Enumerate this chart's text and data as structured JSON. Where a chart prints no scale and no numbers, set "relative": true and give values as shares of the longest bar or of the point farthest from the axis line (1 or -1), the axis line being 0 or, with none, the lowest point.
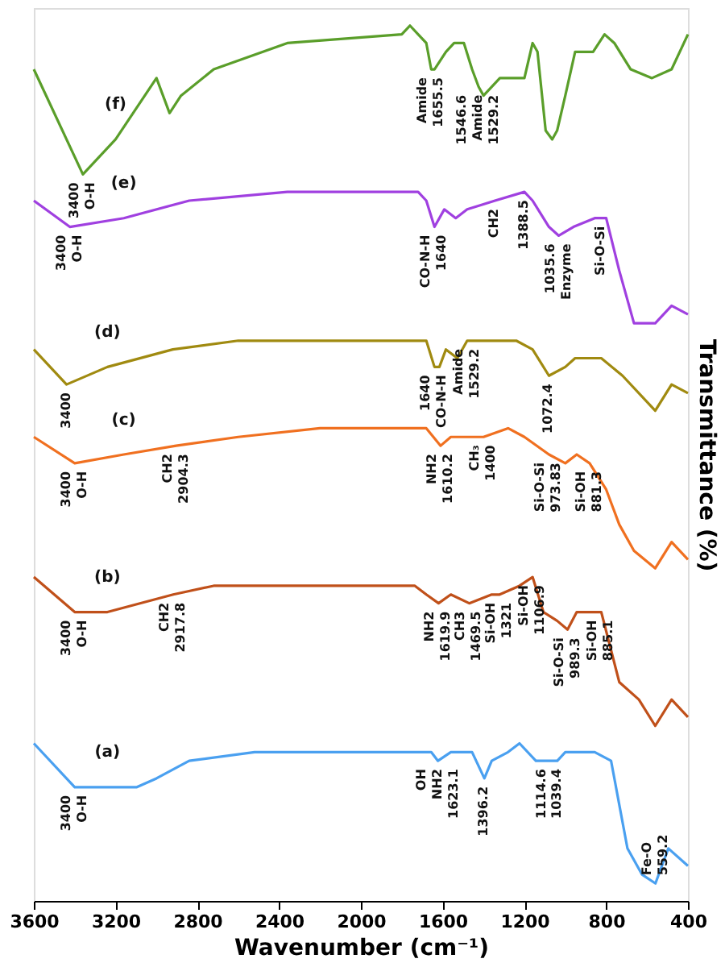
{
  "chart_data": {
    "type": "line",
    "relative": true,
    "xlabel": "Wavenumber (cm⁻¹)",
    "ylabel": "Transmittance (%)",
    "xlim": [
      3600,
      400
    ],
    "xticks": [
      3600,
      3200,
      2800,
      2400,
      2000,
      1600,
      1200,
      800,
      400
    ],
    "grid": false,
    "legend": false,
    "series": [
      {
        "name": "(f)",
        "color": "#5a9e2a",
        "x": [
          3600,
          3360,
          3200,
          3000,
          2936,
          2880,
          2720,
          2360,
          1800,
          1760,
          1720,
          1680,
          1656,
          1640,
          1584,
          1544,
          1496,
          1456,
          1424,
          1400,
          1320,
          1256,
          1200,
          1160,
          1136,
          1096,
          1064,
          1040,
          1000,
          952,
          904,
          864,
          808,
          760,
          680,
          576,
          480,
          400
        ],
        "values": [
          0.95,
          0.83,
          0.87,
          0.94,
          0.9,
          0.92,
          0.95,
          0.98,
          0.99,
          1.0,
          0.99,
          0.98,
          0.95,
          0.95,
          0.97,
          0.98,
          0.98,
          0.95,
          0.93,
          0.92,
          0.94,
          0.94,
          0.94,
          0.98,
          0.97,
          0.88,
          0.87,
          0.88,
          0.92,
          0.97,
          0.97,
          0.97,
          0.99,
          0.98,
          0.95,
          0.94,
          0.95,
          0.99
        ]
      },
      {
        "name": "(e)",
        "color": "#a040e0",
        "x": [
          3600,
          3424,
          3160,
          2840,
          2360,
          1720,
          1680,
          1640,
          1592,
          1536,
          1480,
          1344,
          1200,
          1160,
          1080,
          1032,
          960,
          856,
          824,
          800,
          736,
          664,
          560,
          480,
          400
        ],
        "values": [
          0.8,
          0.77,
          0.78,
          0.8,
          0.81,
          0.81,
          0.8,
          0.77,
          0.79,
          0.78,
          0.79,
          0.8,
          0.81,
          0.8,
          0.77,
          0.76,
          0.77,
          0.78,
          0.78,
          0.78,
          0.72,
          0.66,
          0.66,
          0.68,
          0.67
        ]
      },
      {
        "name": "(d)",
        "color": "#a08a10",
        "x": [
          3600,
          3440,
          3240,
          2920,
          2600,
          1720,
          1680,
          1640,
          1616,
          1584,
          1528,
          1480,
          1400,
          1240,
          1160,
          1080,
          1000,
          952,
          824,
          720,
          560,
          480,
          400
        ],
        "values": [
          0.63,
          0.59,
          0.61,
          0.63,
          0.64,
          0.64,
          0.64,
          0.61,
          0.61,
          0.63,
          0.62,
          0.64,
          0.64,
          0.64,
          0.63,
          0.6,
          0.61,
          0.62,
          0.62,
          0.6,
          0.56,
          0.59,
          0.58
        ]
      },
      {
        "name": "(c)",
        "color": "#f07020",
        "x": [
          3600,
          3400,
          3160,
          2904,
          2600,
          2200,
          1680,
          1610,
          1560,
          1400,
          1280,
          1200,
          1080,
          1000,
          944,
          881,
          800,
          736,
          664,
          560,
          480,
          400
        ],
        "values": [
          0.53,
          0.5,
          0.51,
          0.52,
          0.53,
          0.54,
          0.54,
          0.52,
          0.53,
          0.53,
          0.54,
          0.53,
          0.51,
          0.5,
          0.51,
          0.5,
          0.47,
          0.43,
          0.4,
          0.38,
          0.41,
          0.39
        ]
      },
      {
        "name": "(b)",
        "color": "#c0501a",
        "x": [
          3600,
          3400,
          3240,
          2918,
          2720,
          2200,
          1736,
          1680,
          1620,
          1560,
          1470,
          1360,
          1321,
          1224,
          1160,
          1107,
          1040,
          989,
          944,
          885,
          824,
          736,
          640,
          560,
          480,
          400
        ],
        "values": [
          0.37,
          0.33,
          0.33,
          0.35,
          0.36,
          0.36,
          0.36,
          0.35,
          0.34,
          0.35,
          0.34,
          0.35,
          0.35,
          0.36,
          0.37,
          0.33,
          0.32,
          0.31,
          0.33,
          0.33,
          0.33,
          0.25,
          0.23,
          0.2,
          0.23,
          0.21
        ]
      },
      {
        "name": "(a)",
        "color": "#4aa0f0",
        "x": [
          3600,
          3400,
          3240,
          3096,
          3000,
          2840,
          2520,
          2200,
          1720,
          1656,
          1623,
          1560,
          1456,
          1396,
          1360,
          1280,
          1224,
          1144,
          1115,
          1080,
          1039,
          1000,
          920,
          856,
          776,
          696,
          624,
          559,
          496,
          400
        ],
        "values": [
          0.18,
          0.13,
          0.13,
          0.13,
          0.14,
          0.16,
          0.17,
          0.17,
          0.17,
          0.17,
          0.16,
          0.17,
          0.17,
          0.14,
          0.16,
          0.17,
          0.18,
          0.16,
          0.16,
          0.16,
          0.16,
          0.17,
          0.17,
          0.17,
          0.16,
          0.06,
          0.03,
          0.02,
          0.06,
          0.04
        ]
      }
    ],
    "annotations": [
      {
        "text": "3400",
        "x": 3360,
        "y": 0.83
      },
      {
        "text": "O-H",
        "x": 3360,
        "y": 0.83
      },
      {
        "text": "Amide",
        "x": 1656,
        "y": 0.95
      },
      {
        "text": "1655.5",
        "x": 1656,
        "y": 0.95
      },
      {
        "text": "1546.6",
        "x": 1424,
        "y": 0.93
      },
      {
        "text": "Amide",
        "x": 1424,
        "y": 0.93
      },
      {
        "text": "1529.2",
        "x": 1424,
        "y": 0.93
      },
      {
        "text": "3400",
        "x": 3424,
        "y": 0.77
      },
      {
        "text": "O-H",
        "x": 3424,
        "y": 0.77
      },
      {
        "text": "CO-N-H",
        "x": 1640,
        "y": 0.77
      },
      {
        "text": "1640",
        "x": 1640,
        "y": 0.77
      },
      {
        "text": "CH2",
        "x": 1344,
        "y": 0.8
      },
      {
        "text": "1388.5",
        "x": 1200,
        "y": 0.81
      },
      {
        "text": "1035.6",
        "x": 1032,
        "y": 0.76
      },
      {
        "text": "Enzyme",
        "x": 1032,
        "y": 0.76
      },
      {
        "text": "Si-O-Si",
        "x": 824,
        "y": 0.78
      },
      {
        "text": "3400",
        "x": 3440,
        "y": 0.59
      },
      {
        "text": "1640",
        "x": 1640,
        "y": 0.61
      },
      {
        "text": "CO-N-H",
        "x": 1640,
        "y": 0.61
      },
      {
        "text": "Amide",
        "x": 1480,
        "y": 0.64
      },
      {
        "text": "1529.2",
        "x": 1480,
        "y": 0.64
      },
      {
        "text": "1072.4",
        "x": 1080,
        "y": 0.6
      },
      {
        "text": "3400",
        "x": 3400,
        "y": 0.5
      },
      {
        "text": "O-H",
        "x": 3400,
        "y": 0.5
      },
      {
        "text": "CH2",
        "x": 2904,
        "y": 0.52
      },
      {
        "text": "2904.3",
        "x": 2904,
        "y": 0.52
      },
      {
        "text": "NH2",
        "x": 1610,
        "y": 0.52
      },
      {
        "text": "1610.2",
        "x": 1610,
        "y": 0.52
      },
      {
        "text": "CH₃",
        "x": 1400,
        "y": 0.53
      },
      {
        "text": "1400",
        "x": 1400,
        "y": 0.53
      },
      {
        "text": "Si-O-Si",
        "x": 1080,
        "y": 0.51
      },
      {
        "text": "973.83",
        "x": 1080,
        "y": 0.51
      },
      {
        "text": "Si-OH",
        "x": 881,
        "y": 0.5
      },
      {
        "text": "881.3",
        "x": 881,
        "y": 0.5
      },
      {
        "text": "3400",
        "x": 3400,
        "y": 0.33
      },
      {
        "text": "O-H",
        "x": 3400,
        "y": 0.33
      },
      {
        "text": "CH2",
        "x": 2918,
        "y": 0.35
      },
      {
        "text": "2917.8",
        "x": 2918,
        "y": 0.35
      },
      {
        "text": "NH2",
        "x": 1620,
        "y": 0.34
      },
      {
        "text": "1619.9",
        "x": 1620,
        "y": 0.34
      },
      {
        "text": "CH3",
        "x": 1470,
        "y": 0.34
      },
      {
        "text": "1469.5",
        "x": 1470,
        "y": 0.34
      },
      {
        "text": "Si-OH",
        "x": 1321,
        "y": 0.35
      },
      {
        "text": "1321",
        "x": 1321,
        "y": 0.35
      },
      {
        "text": "Si-OH",
        "x": 1160,
        "y": 0.37
      },
      {
        "text": "1106.9",
        "x": 1160,
        "y": 0.37
      },
      {
        "text": "Si-O-Si",
        "x": 989,
        "y": 0.31
      },
      {
        "text": "989.3",
        "x": 989,
        "y": 0.31
      },
      {
        "text": "Si-OH",
        "x": 824,
        "y": 0.33
      },
      {
        "text": "885.1",
        "x": 824,
        "y": 0.33
      },
      {
        "text": "3400",
        "x": 3400,
        "y": 0.13
      },
      {
        "text": "O-H",
        "x": 3400,
        "y": 0.13
      },
      {
        "text": "OH",
        "x": 1623,
        "y": 0.16
      },
      {
        "text": "NH2",
        "x": 1623,
        "y": 0.16
      },
      {
        "text": "1623.1",
        "x": 1623,
        "y": 0.16
      },
      {
        "text": "1396.2",
        "x": 1396,
        "y": 0.14
      },
      {
        "text": "1114.6",
        "x": 1115,
        "y": 0.16
      },
      {
        "text": "1039.4",
        "x": 1039,
        "y": 0.16
      },
      {
        "text": "Fe-O",
        "x": 559,
        "y": 0.02
      },
      {
        "text": "559.2",
        "x": 559,
        "y": 0.02
      }
    ]
  }
}
